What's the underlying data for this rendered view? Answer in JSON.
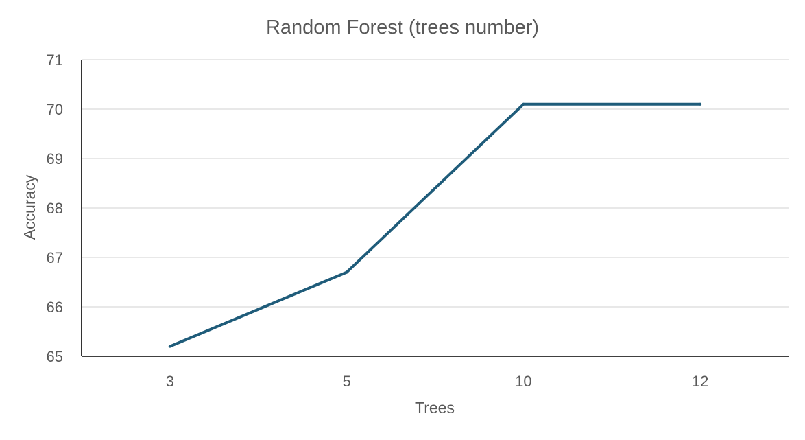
{
  "chart_data": {
    "type": "line",
    "title": "Random Forest (trees number)",
    "xlabel": "Trees",
    "ylabel": "Accuracy",
    "categories": [
      "3",
      "5",
      "10",
      "12"
    ],
    "series": [
      {
        "values": [
          65.2,
          66.7,
          70.1,
          70.1
        ]
      }
    ],
    "ylim": [
      65,
      71
    ],
    "yticks": [
      65,
      66,
      67,
      68,
      69,
      70,
      71
    ],
    "grid": true,
    "legend": "none",
    "line_color": "#1f5c7a"
  }
}
